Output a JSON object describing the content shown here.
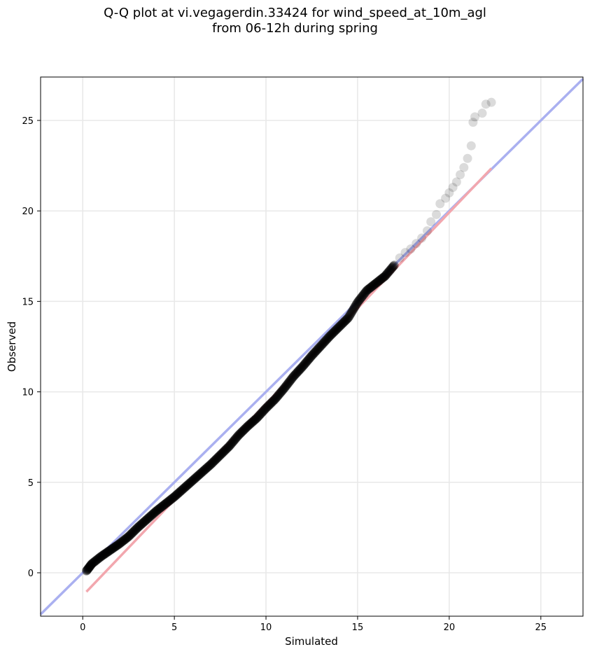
{
  "chart_data": {
    "type": "scatter",
    "title_line1": "Q-Q plot at vi.vegagerdin.33424 for wind_speed_at_10m_agl",
    "title_line2": "from 06-12h during spring",
    "xlabel": "Simulated",
    "ylabel": "Observed",
    "xlim": [
      -2.3,
      27.3
    ],
    "ylim": [
      -2.4,
      27.4
    ],
    "xticks": [
      0,
      5,
      10,
      15,
      20,
      25
    ],
    "yticks": [
      0,
      5,
      10,
      15,
      20,
      25
    ],
    "grid": true,
    "colors": {
      "points": "#000000",
      "identity_line": "#aab0f0",
      "fit_line": "#f2a7ae"
    },
    "identity_line": {
      "from": [
        -2.3,
        -2.3
      ],
      "to": [
        27.3,
        27.3
      ]
    },
    "fit_line": {
      "from": [
        0.2,
        -1.05
      ],
      "to": [
        22.3,
        22.35
      ]
    },
    "points_dense": {
      "x": [
        0.2,
        0.5,
        1.0,
        1.5,
        2.0,
        2.5,
        3.0,
        3.5,
        4.0,
        4.5,
        5.0,
        5.5,
        6.0,
        6.5,
        7.0,
        7.5,
        8.0,
        8.5,
        9.0,
        9.5,
        10.0,
        10.5,
        11.0,
        11.5,
        12.0,
        12.5,
        13.0,
        13.5,
        14.0,
        14.5,
        15.0,
        15.5,
        16.0,
        16.5,
        17.0
      ],
      "y": [
        0.1,
        0.5,
        0.9,
        1.25,
        1.6,
        2.0,
        2.5,
        2.95,
        3.4,
        3.8,
        4.2,
        4.65,
        5.1,
        5.55,
        6.0,
        6.5,
        7.0,
        7.6,
        8.1,
        8.55,
        9.1,
        9.6,
        10.2,
        10.85,
        11.4,
        12.0,
        12.55,
        13.1,
        13.6,
        14.1,
        14.95,
        15.6,
        16.0,
        16.4,
        17.0
      ]
    },
    "points_tail": {
      "x": [
        17.3,
        17.6,
        17.9,
        18.2,
        18.5,
        18.8,
        19.0,
        19.3,
        19.5,
        19.8,
        20.0,
        20.2,
        20.4,
        20.6,
        20.8,
        21.0,
        21.2,
        21.3,
        21.4,
        21.8,
        22.0,
        22.3
      ],
      "y": [
        17.4,
        17.7,
        17.9,
        18.2,
        18.5,
        18.9,
        19.4,
        19.8,
        20.4,
        20.7,
        21.0,
        21.3,
        21.6,
        22.0,
        22.4,
        22.9,
        23.6,
        24.9,
        25.2,
        25.4,
        25.9,
        26.0
      ]
    }
  }
}
